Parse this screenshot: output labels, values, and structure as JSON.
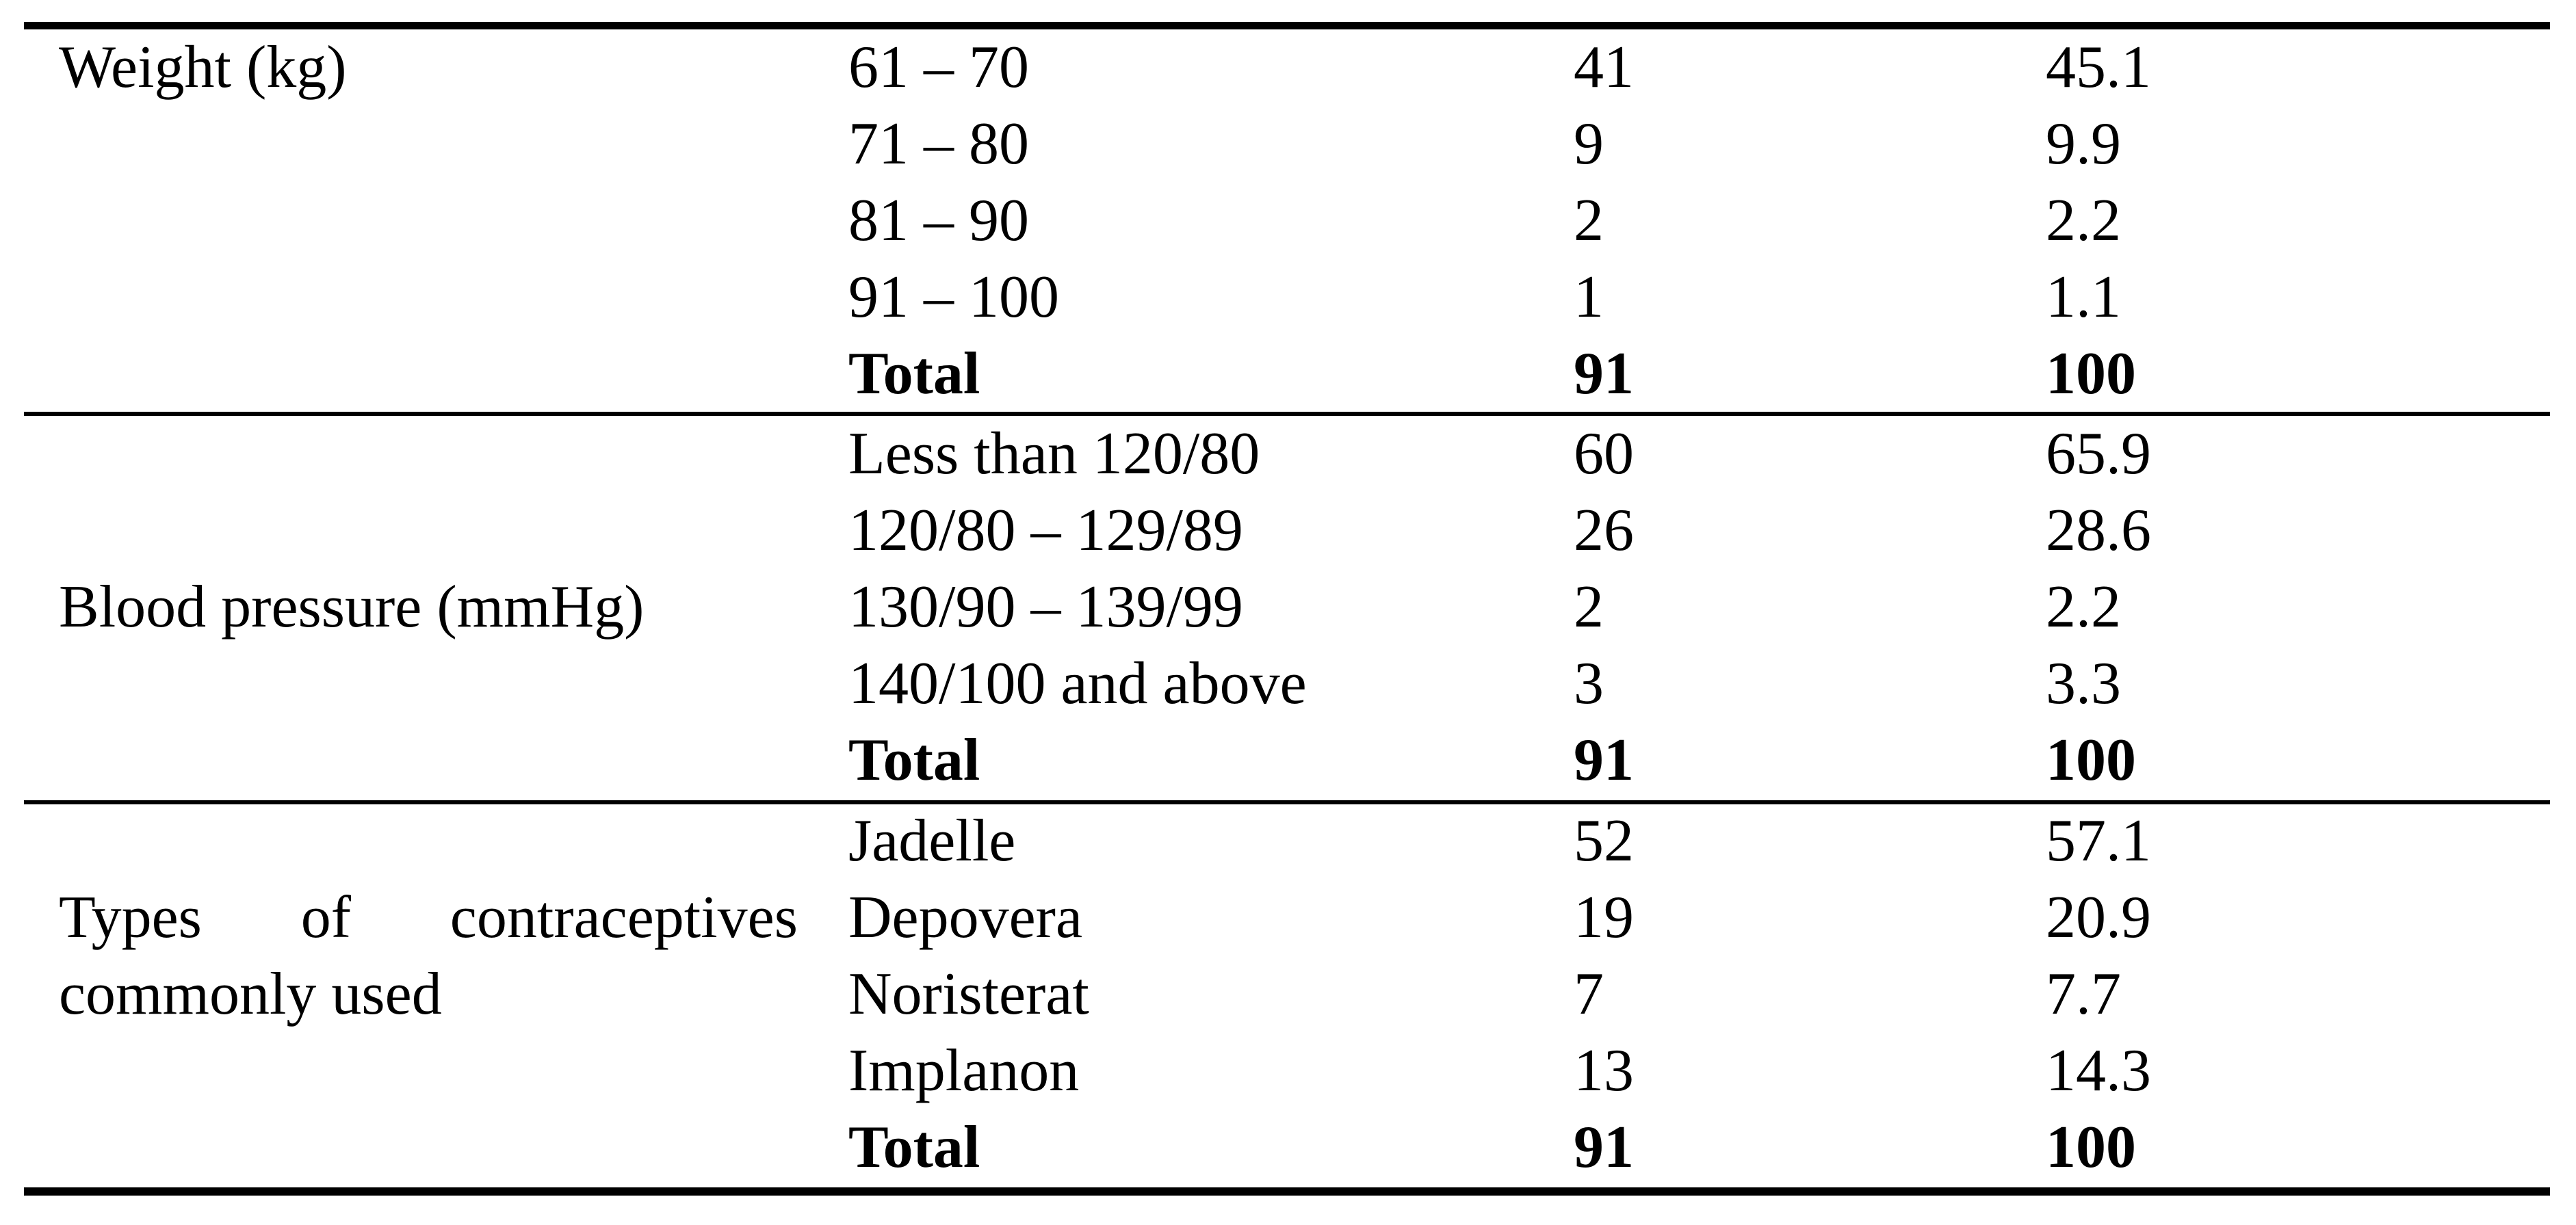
{
  "colors": {
    "text": "#000000",
    "background": "#ffffff",
    "rule": "#000000"
  },
  "table": {
    "sections": [
      {
        "label": "Weight (kg)",
        "rows": [
          {
            "category": "61 – 70",
            "frequency": "41",
            "percentage": "45.1"
          },
          {
            "category": "71 – 80",
            "frequency": "9",
            "percentage": "9.9"
          },
          {
            "category": "81 – 90",
            "frequency": "2",
            "percentage": "2.2"
          },
          {
            "category": "91 – 100",
            "frequency": "1",
            "percentage": "1.1"
          },
          {
            "category": "Total",
            "frequency": "91",
            "percentage": "100"
          }
        ]
      },
      {
        "label": "Blood pressure (mmHg)",
        "rows": [
          {
            "category": "Less than 120/80",
            "frequency": "60",
            "percentage": "65.9"
          },
          {
            "category": "120/80 – 129/89",
            "frequency": "26",
            "percentage": "28.6"
          },
          {
            "category": "130/90 – 139/99",
            "frequency": "2",
            "percentage": "2.2"
          },
          {
            "category": "140/100 and above",
            "frequency": "3",
            "percentage": "3.3"
          },
          {
            "category": "Total",
            "frequency": "91",
            "percentage": "100"
          }
        ]
      },
      {
        "label_line1": "Types of contraceptives",
        "label_line2": "commonly used",
        "rows": [
          {
            "category": "Jadelle",
            "frequency": "52",
            "percentage": "57.1"
          },
          {
            "category": "Depovera",
            "frequency": "19",
            "percentage": "20.9"
          },
          {
            "category": "Noristerat",
            "frequency": "7",
            "percentage": "7.7"
          },
          {
            "category": "Implanon",
            "frequency": "13",
            "percentage": "14.3"
          },
          {
            "category": "Total",
            "frequency": "91",
            "percentage": "100"
          }
        ]
      }
    ]
  }
}
